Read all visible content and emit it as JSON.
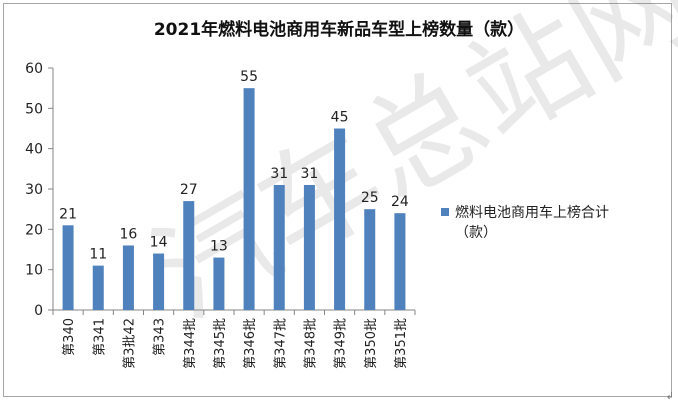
{
  "chart_data": {
    "type": "bar",
    "title": "2021年燃料电池商用车新品车型上榜数量（款）",
    "categories": [
      "第340",
      "第341",
      "第3批42",
      "第343",
      "第344批",
      "第345批",
      "第346批",
      "第347批",
      "第348批",
      "第349批",
      "第350批",
      "第351批"
    ],
    "series": [
      {
        "name": "燃料电池商用车上榜合计（款）",
        "values": [
          21,
          11,
          16,
          14,
          27,
          13,
          55,
          31,
          31,
          45,
          25,
          24
        ],
        "color": "#4f81bd"
      }
    ],
    "ylim": [
      0,
      60
    ],
    "yticks": [
      0,
      10,
      20,
      30,
      40,
      50,
      60
    ],
    "xlabel": "",
    "ylabel": "",
    "grid": false,
    "legend_position": "right",
    "data_labels": true
  },
  "legend": {
    "line1": "燃料电池商用车上榜合计",
    "line2": "（款）"
  },
  "watermark": "汽车总站网",
  "corner_mark": "↲"
}
